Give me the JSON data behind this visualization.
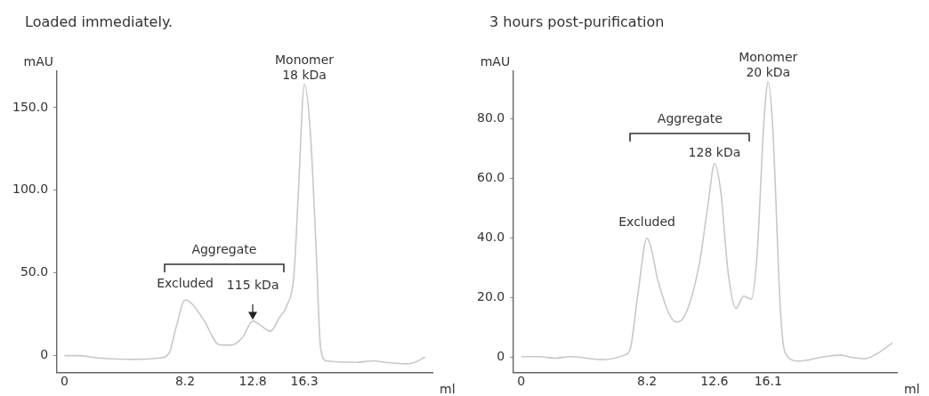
{
  "chart_data": [
    {
      "type": "line",
      "title": "Loaded immediately.",
      "xlabel": "ml",
      "ylabel": "mAU",
      "x": [
        0,
        0.9,
        2.3,
        4.7,
        6.5,
        7.1,
        7.6,
        8.2,
        8.7,
        9.5,
        10.5,
        11.3,
        12.1,
        12.8,
        13.3,
        14.0,
        14.6,
        15.1,
        15.6,
        15.9,
        16.3,
        16.7,
        17.1,
        17.4,
        17.8,
        19.8,
        21.0,
        21.8,
        23.2,
        23.8,
        24.5
      ],
      "series": [
        {
          "color": "#c8c8c8",
          "values": [
            0,
            0,
            -1.4,
            -2.3,
            -1.4,
            1.3,
            17.5,
            33.7,
            31,
            21,
            6.7,
            6.3,
            11,
            21,
            18.4,
            14.8,
            23,
            30,
            50,
            100,
            164,
            136,
            64,
            4.9,
            -3.2,
            -4.1,
            -3.2,
            -4.1,
            -5,
            -4.1,
            -0.9
          ]
        }
      ],
      "xlim": [
        -0.5,
        25
      ],
      "ylim": [
        -10,
        172
      ],
      "xticks": [
        0,
        8.2,
        12.8,
        16.3
      ],
      "yticks": [
        0,
        {
          "value": 50,
          "label": "50.0"
        },
        {
          "value": 100,
          "label": "100.0"
        },
        {
          "value": 150,
          "label": "150.0"
        }
      ],
      "annotations": [
        {
          "text": "Monomer\n18 kDa",
          "x": 16.3,
          "y": 164
        },
        "Aggregate",
        {
          "text": "Excluded",
          "x": 8.2,
          "y": 33.7
        },
        {
          "text": "115 kDa",
          "x": 12.8,
          "y": 21
        }
      ],
      "grid": false,
      "legend": false,
      "marker": "none",
      "line_style": "solid"
    },
    {
      "type": "line",
      "title": "3 hours post-purification",
      "xlabel": "ml",
      "ylabel": "mAU",
      "x": [
        0,
        1.2,
        2.2,
        3.2,
        5.3,
        6.7,
        7.1,
        7.6,
        8.2,
        8.5,
        8.9,
        10.1,
        10.6,
        11.6,
        12.2,
        12.6,
        13.0,
        13.5,
        14.0,
        14.5,
        15.0,
        15.4,
        15.8,
        16.1,
        16.4,
        16.9,
        17.2,
        18.1,
        19.8,
        20.8,
        21.6,
        22.4,
        23.2,
        24.2
      ],
      "series": [
        {
          "color": "#c8c8c8",
          "values": [
            0.2,
            0.2,
            -0.3,
            0.2,
            -0.8,
            0.7,
            2.7,
            21,
            40,
            36,
            26,
            11.9,
            13.4,
            31,
            52,
            65,
            56,
            28,
            16.4,
            20.5,
            19.5,
            36,
            77,
            92.4,
            77,
            15.9,
            1.7,
            -1.3,
            0.2,
            0.7,
            -0.1,
            -0.5,
            1.2,
            4.8
          ]
        }
      ],
      "xlim": [
        -0.5,
        24.5
      ],
      "ylim": [
        -5,
        96
      ],
      "xticks": [
        0,
        8.2,
        12.6,
        16.1
      ],
      "yticks": [
        0,
        {
          "value": 20,
          "label": "20.0"
        },
        {
          "value": 40,
          "label": "40.0"
        },
        {
          "value": 60,
          "label": "60.0"
        },
        {
          "value": 80,
          "label": "80.0"
        }
      ],
      "annotations": [
        {
          "text": "Monomer\n20 kDa",
          "x": 16.1,
          "y": 92.4
        },
        "Aggregate",
        {
          "text": "128 kDa",
          "x": 12.6,
          "y": 65
        },
        {
          "text": "Excluded",
          "x": 8.2,
          "y": 40
        }
      ],
      "grid": false,
      "legend": false,
      "marker": "none",
      "line_style": "solid"
    }
  ]
}
